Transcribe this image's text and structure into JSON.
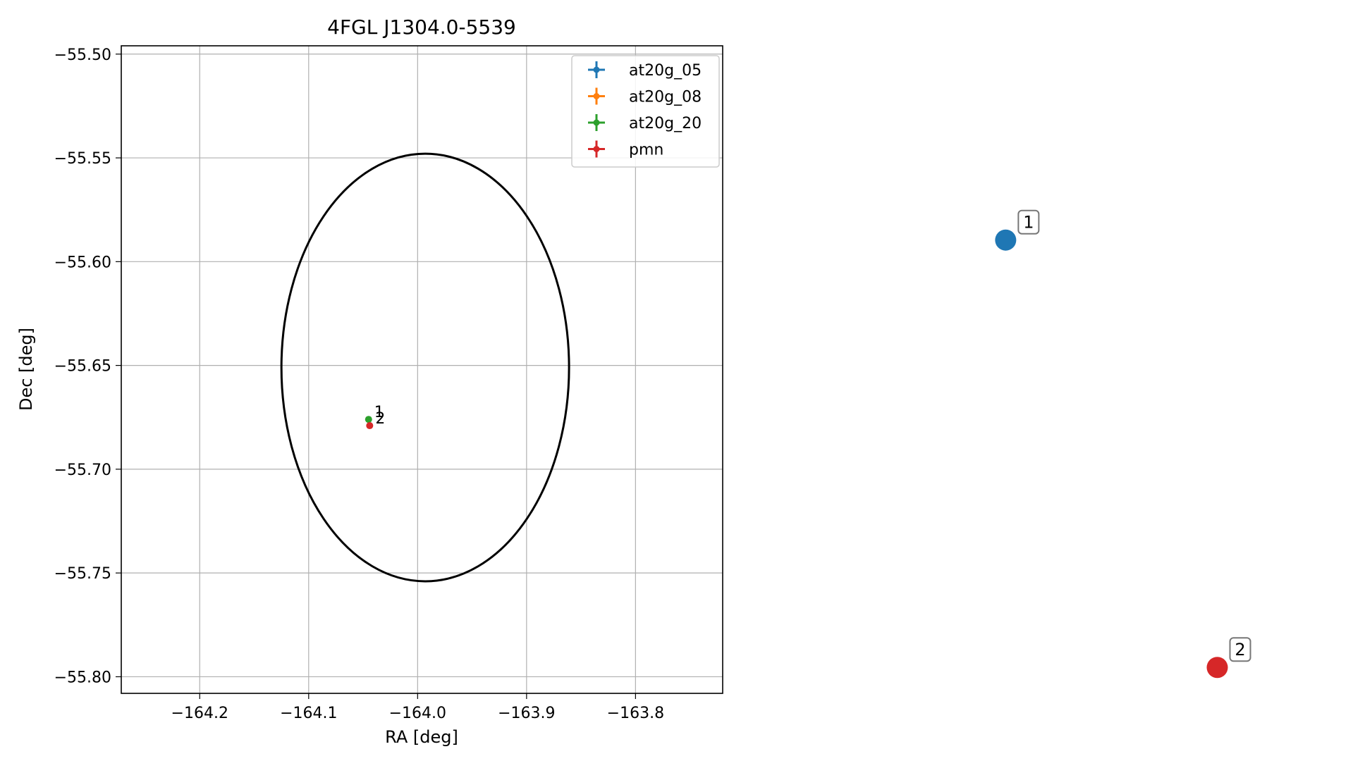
{
  "chart_data": [
    {
      "type": "scatter",
      "title": "4FGL J1304.0-5539",
      "xlabel": "RA [deg]",
      "ylabel": "Dec [deg]",
      "xlim": [
        -164.272,
        -163.72
      ],
      "ylim": [
        -55.808,
        -55.496
      ],
      "xticks": [
        -164.2,
        -164.1,
        -164.0,
        -163.9,
        -163.8
      ],
      "xtick_labels": [
        "−164.2",
        "−164.1",
        "−164.0",
        "−163.9",
        "−163.8"
      ],
      "yticks": [
        -55.5,
        -55.55,
        -55.6,
        -55.65,
        -55.7,
        -55.75,
        -55.8
      ],
      "ytick_labels": [
        "−55.50",
        "−55.55",
        "−55.60",
        "−55.65",
        "−55.70",
        "−55.75",
        "−55.80"
      ],
      "grid": true,
      "legend_position": "top-right",
      "series": [
        {
          "name": "at20g_05",
          "color": "#1f77b4",
          "points": []
        },
        {
          "name": "at20g_08",
          "color": "#ff7f0e",
          "points": []
        },
        {
          "name": "at20g_20",
          "color": "#2ca02c",
          "points": [
            {
              "x": -164.045,
              "y": -55.676,
              "label": "1"
            }
          ]
        },
        {
          "name": "pmn",
          "color": "#d62728",
          "points": [
            {
              "x": -164.044,
              "y": -55.679,
              "label": "2"
            }
          ]
        }
      ],
      "ellipse": {
        "center_x": -163.993,
        "center_y": -55.651,
        "semi_axis_x": 0.132,
        "semi_axis_y": 0.103,
        "color": "#000000"
      }
    },
    {
      "type": "scatter",
      "axes_visible": false,
      "points": [
        {
          "label": "1",
          "color": "#1f77b4",
          "x": 0.32,
          "y": 0.7
        },
        {
          "label": "2",
          "color": "#d62728",
          "x": 0.75,
          "y": 0.04
        }
      ]
    }
  ]
}
